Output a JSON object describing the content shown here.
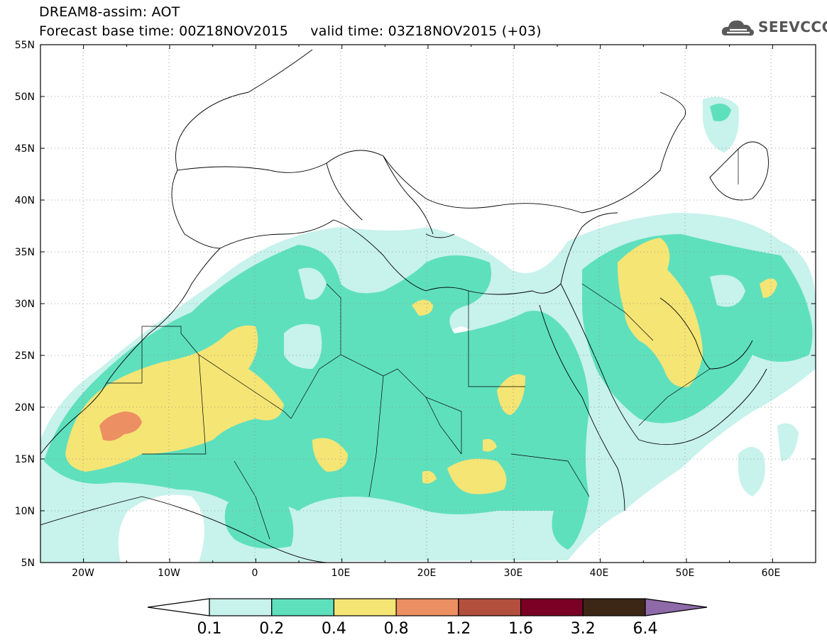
{
  "header": {
    "line1": "DREAM8-assim: AOT",
    "line2": "Forecast base time: 00Z18NOV2015     valid time: 03Z18NOV2015 (+03)"
  },
  "logo": {
    "text": "SEEVCCC"
  },
  "map": {
    "lat_range": [
      5,
      55
    ],
    "lon_range": [
      -25,
      65
    ],
    "lat_labels": [
      "55N",
      "50N",
      "45N",
      "40N",
      "35N",
      "30N",
      "25N",
      "20N",
      "15N",
      "10N",
      "5N"
    ],
    "lon_labels": [
      "20W",
      "10W",
      "0",
      "10E",
      "20E",
      "30E",
      "40E",
      "50E",
      "60E"
    ]
  },
  "legend": {
    "levels": [
      "0.1",
      "0.2",
      "0.4",
      "0.8",
      "1.2",
      "1.6",
      "3.2",
      "6.4"
    ],
    "colors": [
      "#ffffff",
      "#c8f2ec",
      "#5fe0bd",
      "#f5e575",
      "#ec8f62",
      "#b3503d",
      "#7a0025",
      "#3c2616",
      "#8e6aa8"
    ]
  }
}
